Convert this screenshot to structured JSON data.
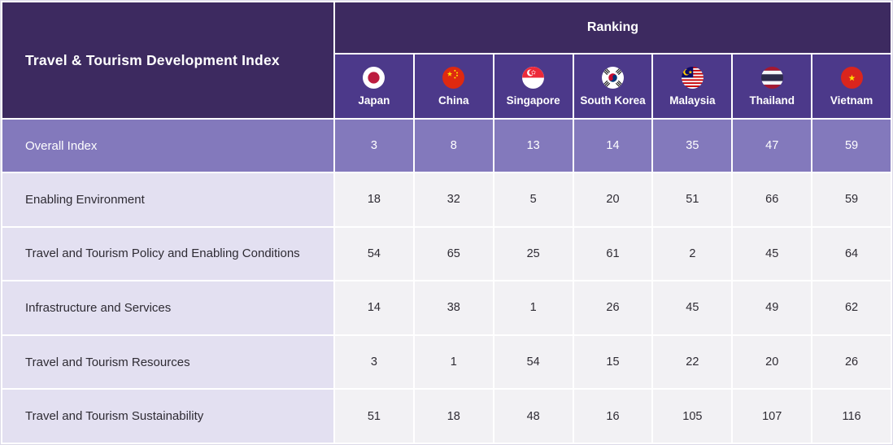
{
  "chart_data": {
    "type": "table",
    "title": "Travel & Tourism Development Index",
    "group_header": "Ranking",
    "columns": [
      {
        "label": "Japan",
        "flag_icon": "japan-flag-icon"
      },
      {
        "label": "China",
        "flag_icon": "china-flag-icon"
      },
      {
        "label": "Singapore",
        "flag_icon": "singapore-flag-icon"
      },
      {
        "label": "South Korea",
        "flag_icon": "south-korea-flag-icon"
      },
      {
        "label": "Malaysia",
        "flag_icon": "malaysia-flag-icon"
      },
      {
        "label": "Thailand",
        "flag_icon": "thailand-flag-icon"
      },
      {
        "label": "Vietnam",
        "flag_icon": "vietnam-flag-icon"
      }
    ],
    "rows": [
      {
        "label": "Overall Index",
        "highlight": true,
        "values": [
          3,
          8,
          13,
          14,
          35,
          47,
          59
        ]
      },
      {
        "label": "Enabling Environment",
        "highlight": false,
        "values": [
          18,
          32,
          5,
          20,
          51,
          66,
          59
        ]
      },
      {
        "label": "Travel and Tourism Policy and Enabling Conditions",
        "highlight": false,
        "values": [
          54,
          65,
          25,
          61,
          2,
          45,
          64
        ]
      },
      {
        "label": "Infrastructure and Services",
        "highlight": false,
        "values": [
          14,
          38,
          1,
          26,
          45,
          49,
          62
        ]
      },
      {
        "label": "Travel and Tourism Resources",
        "highlight": false,
        "values": [
          3,
          1,
          54,
          15,
          22,
          20,
          26
        ]
      },
      {
        "label": "Travel and Tourism Sustainability",
        "highlight": false,
        "values": [
          51,
          18,
          48,
          16,
          105,
          107,
          116
        ]
      }
    ]
  },
  "colors": {
    "header_dark": "#3d2a60",
    "country_cell": "#4c398a",
    "overall_row": "#8379bc",
    "label_cell": "#e3e0f1",
    "value_cell": "#f2f1f4",
    "header_text": "#ffffff",
    "body_text": "#2e2b33",
    "grid_line": "#ffffff"
  }
}
